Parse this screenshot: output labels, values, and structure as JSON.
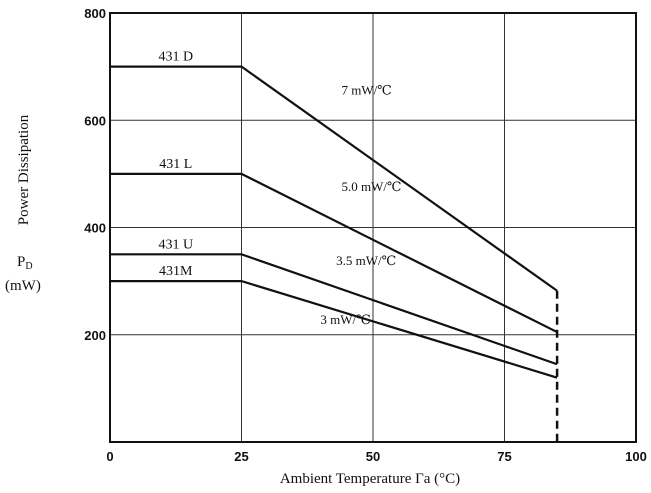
{
  "chart_data": {
    "type": "line",
    "xlabel": "Ambient Temperature   Γa (°C)",
    "ylabel": "Power Dissipation",
    "ylabel_symbol": "P",
    "ylabel_symbol_subscript": "D",
    "ylabel_unit": "(mW)",
    "xlim": [
      0,
      100
    ],
    "ylim": [
      0,
      800
    ],
    "xticks": [
      "0",
      "25",
      "50",
      "75",
      "100"
    ],
    "xtick_values": [
      0,
      25,
      50,
      75,
      100
    ],
    "yticks": [
      "200",
      "400",
      "600",
      "800"
    ],
    "ytick_values": [
      200,
      400,
      600,
      800
    ],
    "grid": true,
    "cutoff_x": 85,
    "cutoff_ymax": 282,
    "series": [
      {
        "name": "431 D",
        "x": [
          0,
          25,
          85
        ],
        "y": [
          700,
          700,
          282
        ],
        "slope_label": "7 mW/℃",
        "slope_label_at": [
          44,
          648
        ]
      },
      {
        "name": "431 L",
        "x": [
          0,
          25,
          85
        ],
        "y": [
          500,
          500,
          205
        ],
        "slope_label": "5.0 mW/℃",
        "slope_label_at": [
          44,
          468
        ]
      },
      {
        "name": "431 U",
        "x": [
          0,
          25,
          85
        ],
        "y": [
          350,
          350,
          145
        ],
        "slope_label": "3.5 mW/℃",
        "slope_label_at": [
          43,
          330
        ]
      },
      {
        "name": "431M",
        "x": [
          0,
          25,
          85
        ],
        "y": [
          300,
          300,
          120
        ],
        "slope_label": "3 mW/℃",
        "slope_label_at": [
          40,
          220
        ]
      }
    ]
  }
}
